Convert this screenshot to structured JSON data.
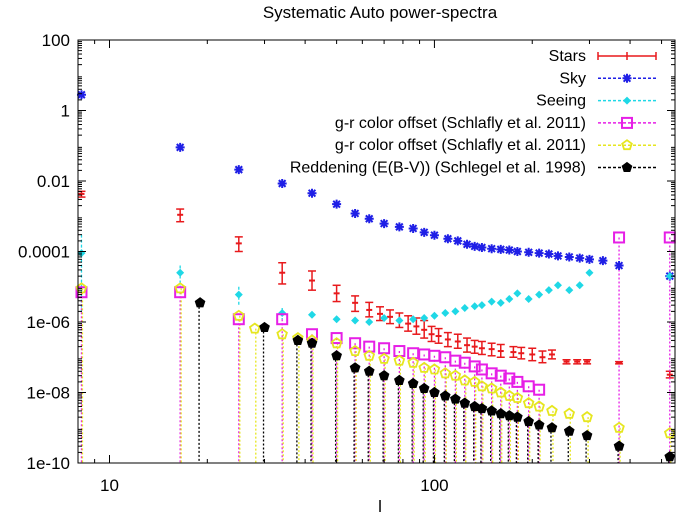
{
  "chart_data": {
    "type": "scatter",
    "title": "Systematic Auto power-spectra",
    "xlabel": "l",
    "ylabel": "",
    "xscale": "log",
    "yscale": "log",
    "xlim": [
      8,
      550
    ],
    "ylim": [
      1e-10,
      100
    ],
    "x_ticks": [
      {
        "value": 10,
        "label": "10"
      },
      {
        "value": 100,
        "label": "100"
      }
    ],
    "y_ticks": [
      {
        "value": 100,
        "label": "100"
      },
      {
        "value": 1,
        "label": "1"
      },
      {
        "value": 0.01,
        "label": "0.01"
      },
      {
        "value": 0.0001,
        "label": "0.0001"
      },
      {
        "value": 1e-06,
        "label": "1e-06"
      },
      {
        "value": 1e-08,
        "label": "1e-08"
      },
      {
        "value": 1e-10,
        "label": "1e-10"
      }
    ],
    "legend_position": "top-right",
    "series": [
      {
        "name": "Stars",
        "color": "#e8191c",
        "marker": "errorbar",
        "points": [
          {
            "x": 8.2,
            "y": 0.0043,
            "lo": 0.0035,
            "hi": 0.0051
          },
          {
            "x": 16.5,
            "y": 0.0011,
            "lo": 0.0007,
            "hi": 0.0016
          },
          {
            "x": 25,
            "y": 0.00017,
            "lo": 0.0001,
            "hi": 0.00026
          },
          {
            "x": 34,
            "y": 2.5e-05,
            "lo": 1.2e-05,
            "hi": 4.8e-05
          },
          {
            "x": 42,
            "y": 1.5e-05,
            "lo": 8e-06,
            "hi": 2.8e-05
          },
          {
            "x": 50,
            "y": 6.5e-06,
            "lo": 3.8e-06,
            "hi": 1.1e-05
          },
          {
            "x": 57,
            "y": 3.5e-06,
            "lo": 2e-06,
            "hi": 5.5e-06
          },
          {
            "x": 63,
            "y": 2.2e-06,
            "lo": 1.4e-06,
            "hi": 3.6e-06
          },
          {
            "x": 68,
            "y": 1.7e-06,
            "lo": 1.1e-06,
            "hi": 2.7e-06
          },
          {
            "x": 73,
            "y": 1.4e-06,
            "lo": 9e-07,
            "hi": 2.2e-06
          },
          {
            "x": 78,
            "y": 1.1e-06,
            "lo": 7e-07,
            "hi": 1.8e-06
          },
          {
            "x": 83,
            "y": 9e-07,
            "lo": 5.5e-07,
            "hi": 1.5e-06
          },
          {
            "x": 88,
            "y": 7.5e-07,
            "lo": 4.5e-07,
            "hi": 1.3e-06
          },
          {
            "x": 93,
            "y": 6e-07,
            "lo": 3.5e-07,
            "hi": 1.1e-06
          },
          {
            "x": 98,
            "y": 4.5e-07,
            "lo": 2.8e-07,
            "hi": 7.5e-07
          },
          {
            "x": 103,
            "y": 4e-07,
            "lo": 2.5e-07,
            "hi": 6.5e-07
          },
          {
            "x": 110,
            "y": 3.2e-07,
            "lo": 2e-07,
            "hi": 5e-07
          },
          {
            "x": 118,
            "y": 2.8e-07,
            "lo": 1.8e-07,
            "hi": 4.5e-07
          },
          {
            "x": 126,
            "y": 2.2e-07,
            "lo": 1.4e-07,
            "hi": 3.5e-07
          },
          {
            "x": 133,
            "y": 2e-07,
            "lo": 1.3e-07,
            "hi": 3e-07
          },
          {
            "x": 140,
            "y": 1.8e-07,
            "lo": 1.2e-07,
            "hi": 2.8e-07
          },
          {
            "x": 150,
            "y": 1.7e-07,
            "lo": 1.1e-07,
            "hi": 2.5e-07
          },
          {
            "x": 160,
            "y": 1.5e-07,
            "lo": 1e-07,
            "hi": 2.3e-07
          },
          {
            "x": 175,
            "y": 1.4e-07,
            "lo": 1e-07,
            "hi": 2e-07
          },
          {
            "x": 185,
            "y": 1.3e-07,
            "lo": 9e-08,
            "hi": 1.9e-07
          },
          {
            "x": 200,
            "y": 1.2e-07,
            "lo": 8e-08,
            "hi": 1.8e-07
          },
          {
            "x": 215,
            "y": 1e-07,
            "lo": 7e-08,
            "hi": 1.5e-07
          },
          {
            "x": 230,
            "y": 1.2e-07,
            "lo": 9e-08,
            "hi": 1.6e-07
          },
          {
            "x": 255,
            "y": 7.5e-08,
            "lo": 6.5e-08,
            "hi": 8.5e-08
          },
          {
            "x": 275,
            "y": 7.5e-08,
            "lo": 6.5e-08,
            "hi": 8.5e-08
          },
          {
            "x": 295,
            "y": 7.5e-08,
            "lo": 6.5e-08,
            "hi": 8.5e-08
          },
          {
            "x": 370,
            "y": 7e-08,
            "lo": 6.5e-08,
            "hi": 7.5e-08
          },
          {
            "x": 530,
            "y": 3.2e-08,
            "lo": 2.6e-08,
            "hi": 4e-08
          }
        ]
      },
      {
        "name": "Sky",
        "color": "#1f1fe6",
        "marker": "star",
        "points": [
          {
            "x": 8.2,
            "y": 2.8
          },
          {
            "x": 16.5,
            "y": 0.09
          },
          {
            "x": 25,
            "y": 0.021
          },
          {
            "x": 34,
            "y": 0.0085
          },
          {
            "x": 42,
            "y": 0.0045
          },
          {
            "x": 50,
            "y": 0.0022
          },
          {
            "x": 57,
            "y": 0.0012
          },
          {
            "x": 63,
            "y": 0.00085
          },
          {
            "x": 70,
            "y": 0.00062
          },
          {
            "x": 78,
            "y": 0.0005
          },
          {
            "x": 86,
            "y": 0.00045
          },
          {
            "x": 93,
            "y": 0.00035
          },
          {
            "x": 100,
            "y": 0.00029
          },
          {
            "x": 110,
            "y": 0.00023
          },
          {
            "x": 118,
            "y": 0.0002
          },
          {
            "x": 126,
            "y": 0.00016
          },
          {
            "x": 133,
            "y": 0.00014
          },
          {
            "x": 140,
            "y": 0.00013
          },
          {
            "x": 150,
            "y": 0.00012
          },
          {
            "x": 160,
            "y": 0.000115
          },
          {
            "x": 170,
            "y": 0.00011
          },
          {
            "x": 180,
            "y": 0.0001
          },
          {
            "x": 195,
            "y": 9.5e-05
          },
          {
            "x": 210,
            "y": 9e-05
          },
          {
            "x": 225,
            "y": 8.5e-05
          },
          {
            "x": 240,
            "y": 7.5e-05
          },
          {
            "x": 260,
            "y": 7e-05
          },
          {
            "x": 280,
            "y": 6.5e-05
          },
          {
            "x": 300,
            "y": 6e-05
          },
          {
            "x": 330,
            "y": 5.5e-05
          },
          {
            "x": 370,
            "y": 4e-05
          },
          {
            "x": 530,
            "y": 2e-05
          }
        ]
      },
      {
        "name": "Seeing",
        "color": "#1fd8e6",
        "marker": "diamond",
        "points": [
          {
            "x": 8.2,
            "y": 9e-05,
            "lo": 2e-06,
            "hi": 0.0003
          },
          {
            "x": 16.5,
            "y": 2.5e-05,
            "lo": 1e-05,
            "hi": 4e-05
          },
          {
            "x": 25,
            "y": 6e-06,
            "lo": 3e-06,
            "hi": 1e-05
          },
          {
            "x": 34,
            "y": 1.8e-06,
            "lo": 1.2e-06,
            "hi": 2.5e-06
          },
          {
            "x": 42,
            "y": 1.6e-06
          },
          {
            "x": 50,
            "y": 1.2e-06
          },
          {
            "x": 57,
            "y": 1.1e-06
          },
          {
            "x": 63,
            "y": 1e-06
          },
          {
            "x": 70,
            "y": 1.3e-06
          },
          {
            "x": 78,
            "y": 1.1e-06
          },
          {
            "x": 86,
            "y": 1.2e-06
          },
          {
            "x": 93,
            "y": 1.3e-06
          },
          {
            "x": 100,
            "y": 1.5e-06
          },
          {
            "x": 108,
            "y": 1.8e-06
          },
          {
            "x": 116,
            "y": 2e-06
          },
          {
            "x": 124,
            "y": 2.5e-06
          },
          {
            "x": 133,
            "y": 2.8e-06
          },
          {
            "x": 140,
            "y": 3e-06
          },
          {
            "x": 150,
            "y": 3.8e-06
          },
          {
            "x": 160,
            "y": 3.5e-06
          },
          {
            "x": 170,
            "y": 4.5e-06
          },
          {
            "x": 180,
            "y": 6.5e-06
          },
          {
            "x": 195,
            "y": 4.5e-06
          },
          {
            "x": 210,
            "y": 6e-06
          },
          {
            "x": 225,
            "y": 8e-06
          },
          {
            "x": 240,
            "y": 1.1e-05
          },
          {
            "x": 260,
            "y": 8e-06
          },
          {
            "x": 280,
            "y": 1.1e-05
          },
          {
            "x": 300,
            "y": 2.5e-05
          },
          {
            "x": 530,
            "y": 2e-05
          }
        ]
      },
      {
        "name": "g-r color offset (Schlafly et al. 2011)",
        "color": "#e61fe6",
        "marker": "square",
        "points": [
          {
            "x": 8.2,
            "y": 7e-06
          },
          {
            "x": 16.5,
            "y": 7e-06
          },
          {
            "x": 25,
            "y": 1.2e-06
          },
          {
            "x": 34,
            "y": 1.2e-06
          },
          {
            "x": 42,
            "y": 4.5e-07
          },
          {
            "x": 50,
            "y": 3.5e-07
          },
          {
            "x": 57,
            "y": 2.5e-07
          },
          {
            "x": 63,
            "y": 2e-07
          },
          {
            "x": 70,
            "y": 1.8e-07
          },
          {
            "x": 78,
            "y": 1.5e-07
          },
          {
            "x": 86,
            "y": 1.3e-07
          },
          {
            "x": 93,
            "y": 1.2e-07
          },
          {
            "x": 100,
            "y": 1.1e-07
          },
          {
            "x": 108,
            "y": 1e-07
          },
          {
            "x": 116,
            "y": 8e-08
          },
          {
            "x": 124,
            "y": 7e-08
          },
          {
            "x": 133,
            "y": 5.5e-08
          },
          {
            "x": 140,
            "y": 4.5e-08
          },
          {
            "x": 150,
            "y": 3.5e-08
          },
          {
            "x": 160,
            "y": 3e-08
          },
          {
            "x": 170,
            "y": 2.5e-08
          },
          {
            "x": 180,
            "y": 2e-08
          },
          {
            "x": 195,
            "y": 1.5e-08
          },
          {
            "x": 210,
            "y": 1.2e-08
          },
          {
            "x": 370,
            "y": 0.00025
          },
          {
            "x": 530,
            "y": 0.00025
          }
        ]
      },
      {
        "name": "g-r color offset (Schlafly et al. 2011)",
        "color": "#e6e61f",
        "marker": "pentagon-open",
        "points": [
          {
            "x": 8.2,
            "y": 9e-06
          },
          {
            "x": 16.5,
            "y": 9e-06
          },
          {
            "x": 25,
            "y": 1.5e-06
          },
          {
            "x": 28,
            "y": 6.5e-07
          },
          {
            "x": 34,
            "y": 4.5e-07
          },
          {
            "x": 38,
            "y": 3.5e-07
          },
          {
            "x": 42,
            "y": 3e-07
          },
          {
            "x": 50,
            "y": 2.5e-07
          },
          {
            "x": 57,
            "y": 1.5e-07
          },
          {
            "x": 63,
            "y": 1.1e-07
          },
          {
            "x": 70,
            "y": 9e-08
          },
          {
            "x": 78,
            "y": 8e-08
          },
          {
            "x": 86,
            "y": 7e-08
          },
          {
            "x": 93,
            "y": 5e-08
          },
          {
            "x": 100,
            "y": 4.5e-08
          },
          {
            "x": 108,
            "y": 3.5e-08
          },
          {
            "x": 116,
            "y": 3e-08
          },
          {
            "x": 124,
            "y": 2.2e-08
          },
          {
            "x": 133,
            "y": 2e-08
          },
          {
            "x": 140,
            "y": 1.5e-08
          },
          {
            "x": 150,
            "y": 1.3e-08
          },
          {
            "x": 160,
            "y": 1e-08
          },
          {
            "x": 170,
            "y": 8e-09
          },
          {
            "x": 180,
            "y": 7e-09
          },
          {
            "x": 195,
            "y": 5e-09
          },
          {
            "x": 210,
            "y": 4e-09
          },
          {
            "x": 230,
            "y": 3e-09
          },
          {
            "x": 260,
            "y": 2.5e-09
          },
          {
            "x": 295,
            "y": 2e-09
          },
          {
            "x": 370,
            "y": 1e-09
          },
          {
            "x": 530,
            "y": 7e-10
          }
        ]
      },
      {
        "name": "Reddening (E(B-V)) (Schlegel et al. 1998)",
        "color": "#000000",
        "marker": "pentagon-filled",
        "points": [
          {
            "x": 19,
            "y": 3.5e-06
          },
          {
            "x": 30,
            "y": 7e-07
          },
          {
            "x": 38,
            "y": 3e-07
          },
          {
            "x": 42,
            "y": 2.5e-07
          },
          {
            "x": 50,
            "y": 1.1e-07
          },
          {
            "x": 57,
            "y": 5e-08
          },
          {
            "x": 63,
            "y": 4e-08
          },
          {
            "x": 70,
            "y": 3e-08
          },
          {
            "x": 78,
            "y": 2.2e-08
          },
          {
            "x": 86,
            "y": 1.8e-08
          },
          {
            "x": 93,
            "y": 1.3e-08
          },
          {
            "x": 100,
            "y": 1e-08
          },
          {
            "x": 108,
            "y": 8e-09
          },
          {
            "x": 116,
            "y": 6.5e-09
          },
          {
            "x": 124,
            "y": 5e-09
          },
          {
            "x": 133,
            "y": 4e-09
          },
          {
            "x": 140,
            "y": 3.5e-09
          },
          {
            "x": 150,
            "y": 3e-09
          },
          {
            "x": 160,
            "y": 2.5e-09
          },
          {
            "x": 170,
            "y": 2.2e-09
          },
          {
            "x": 180,
            "y": 2e-09
          },
          {
            "x": 195,
            "y": 1.5e-09
          },
          {
            "x": 210,
            "y": 1.2e-09
          },
          {
            "x": 230,
            "y": 1e-09
          },
          {
            "x": 260,
            "y": 8e-10
          },
          {
            "x": 295,
            "y": 6e-10
          },
          {
            "x": 370,
            "y": 3e-10
          },
          {
            "x": 530,
            "y": 1.5e-10
          }
        ]
      }
    ]
  }
}
